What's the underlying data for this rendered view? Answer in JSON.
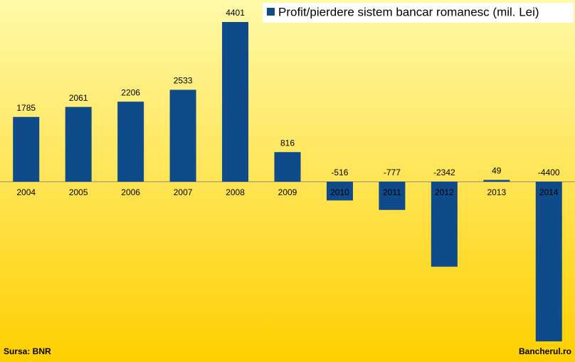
{
  "chart_data": {
    "type": "bar",
    "categories": [
      "2004",
      "2005",
      "2006",
      "2007",
      "2008",
      "2009",
      "2010",
      "2011",
      "2012",
      "2013",
      "2014"
    ],
    "series": [
      {
        "name": "Profit/pierdere sistem bancar romanesc (mil. Lei)",
        "color": "#0f4a8a",
        "values": [
          1785,
          2061,
          2206,
          2533,
          4401,
          816,
          -516,
          -777,
          -2342,
          49,
          -4400
        ]
      }
    ],
    "legend": "top-right",
    "source": "Sursa: BNR",
    "credit": "Bancherul.ro"
  }
}
